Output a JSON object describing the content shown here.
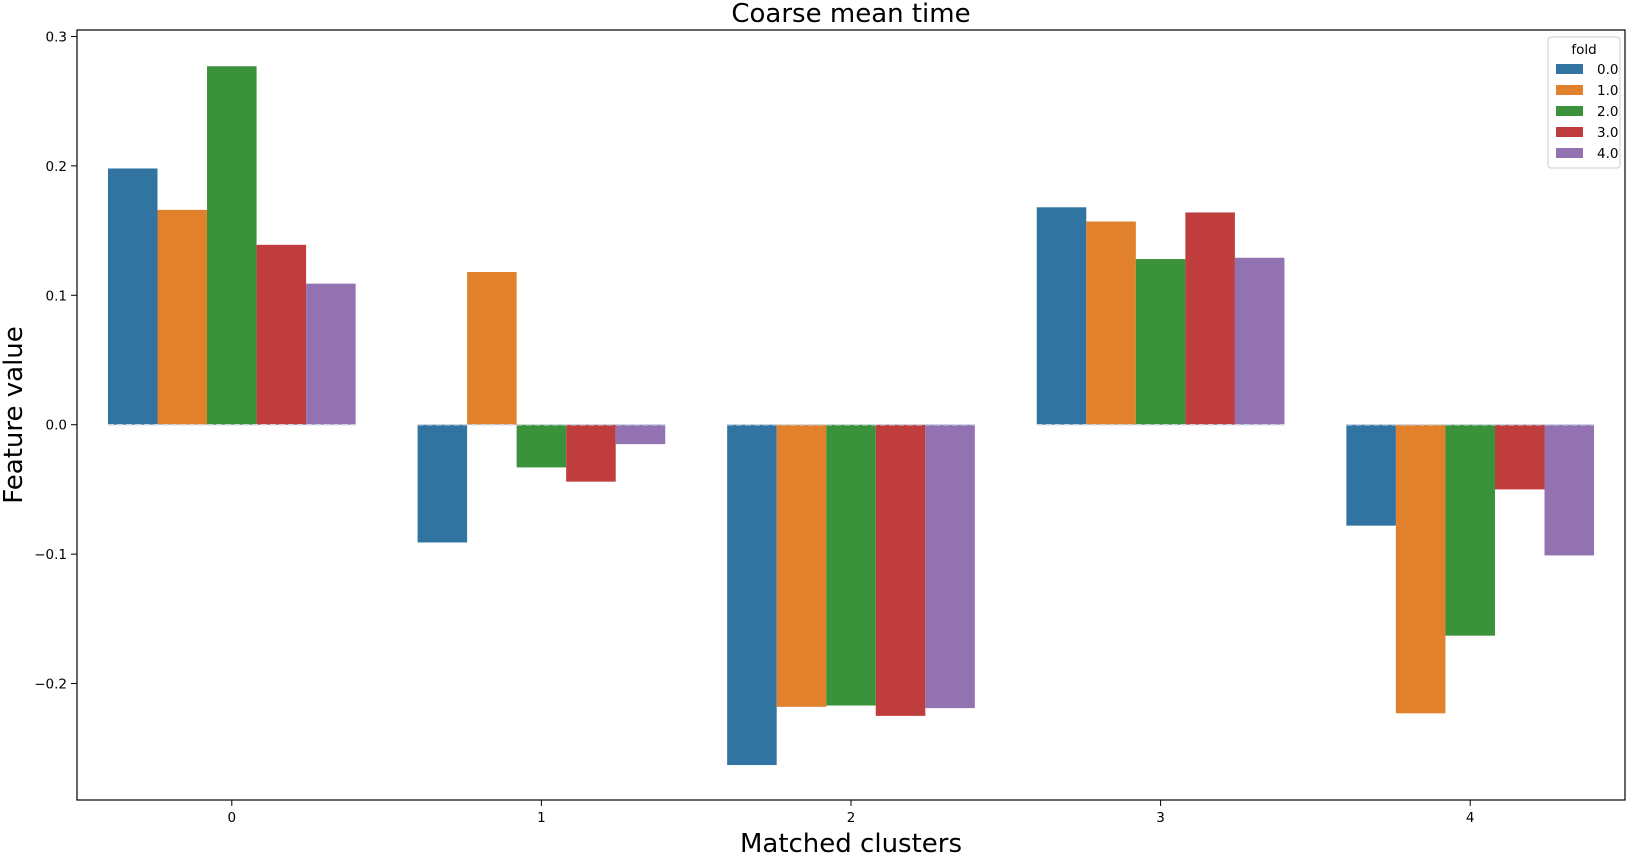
{
  "chart_data": {
    "type": "bar",
    "title": "Coarse mean time",
    "xlabel": "Matched clusters",
    "ylabel": "Feature value",
    "categories": [
      "0",
      "1",
      "2",
      "3",
      "4"
    ],
    "ylim": [
      -0.29,
      0.305
    ],
    "yticks": [
      -0.2,
      -0.1,
      0.0,
      0.1,
      0.2,
      0.3
    ],
    "ytick_labels": [
      "−0.2",
      "−0.1",
      "0.0",
      "0.1",
      "0.2",
      "0.3"
    ],
    "grid": false,
    "legend": {
      "title": "fold",
      "placement": "top-right"
    },
    "series": [
      {
        "name": "0.0",
        "color": "#3274a1",
        "values": [
          0.198,
          -0.091,
          -0.263,
          0.168,
          -0.078
        ]
      },
      {
        "name": "1.0",
        "color": "#e1812c",
        "values": [
          0.166,
          0.118,
          -0.218,
          0.157,
          -0.223
        ]
      },
      {
        "name": "2.0",
        "color": "#3a923a",
        "values": [
          0.277,
          -0.033,
          -0.217,
          0.128,
          -0.163
        ]
      },
      {
        "name": "3.0",
        "color": "#c03d3e",
        "values": [
          0.139,
          -0.044,
          -0.225,
          0.164,
          -0.05
        ]
      },
      {
        "name": "4.0",
        "color": "#9372b2",
        "values": [
          0.109,
          -0.015,
          -0.219,
          0.129,
          -0.101
        ]
      }
    ]
  }
}
